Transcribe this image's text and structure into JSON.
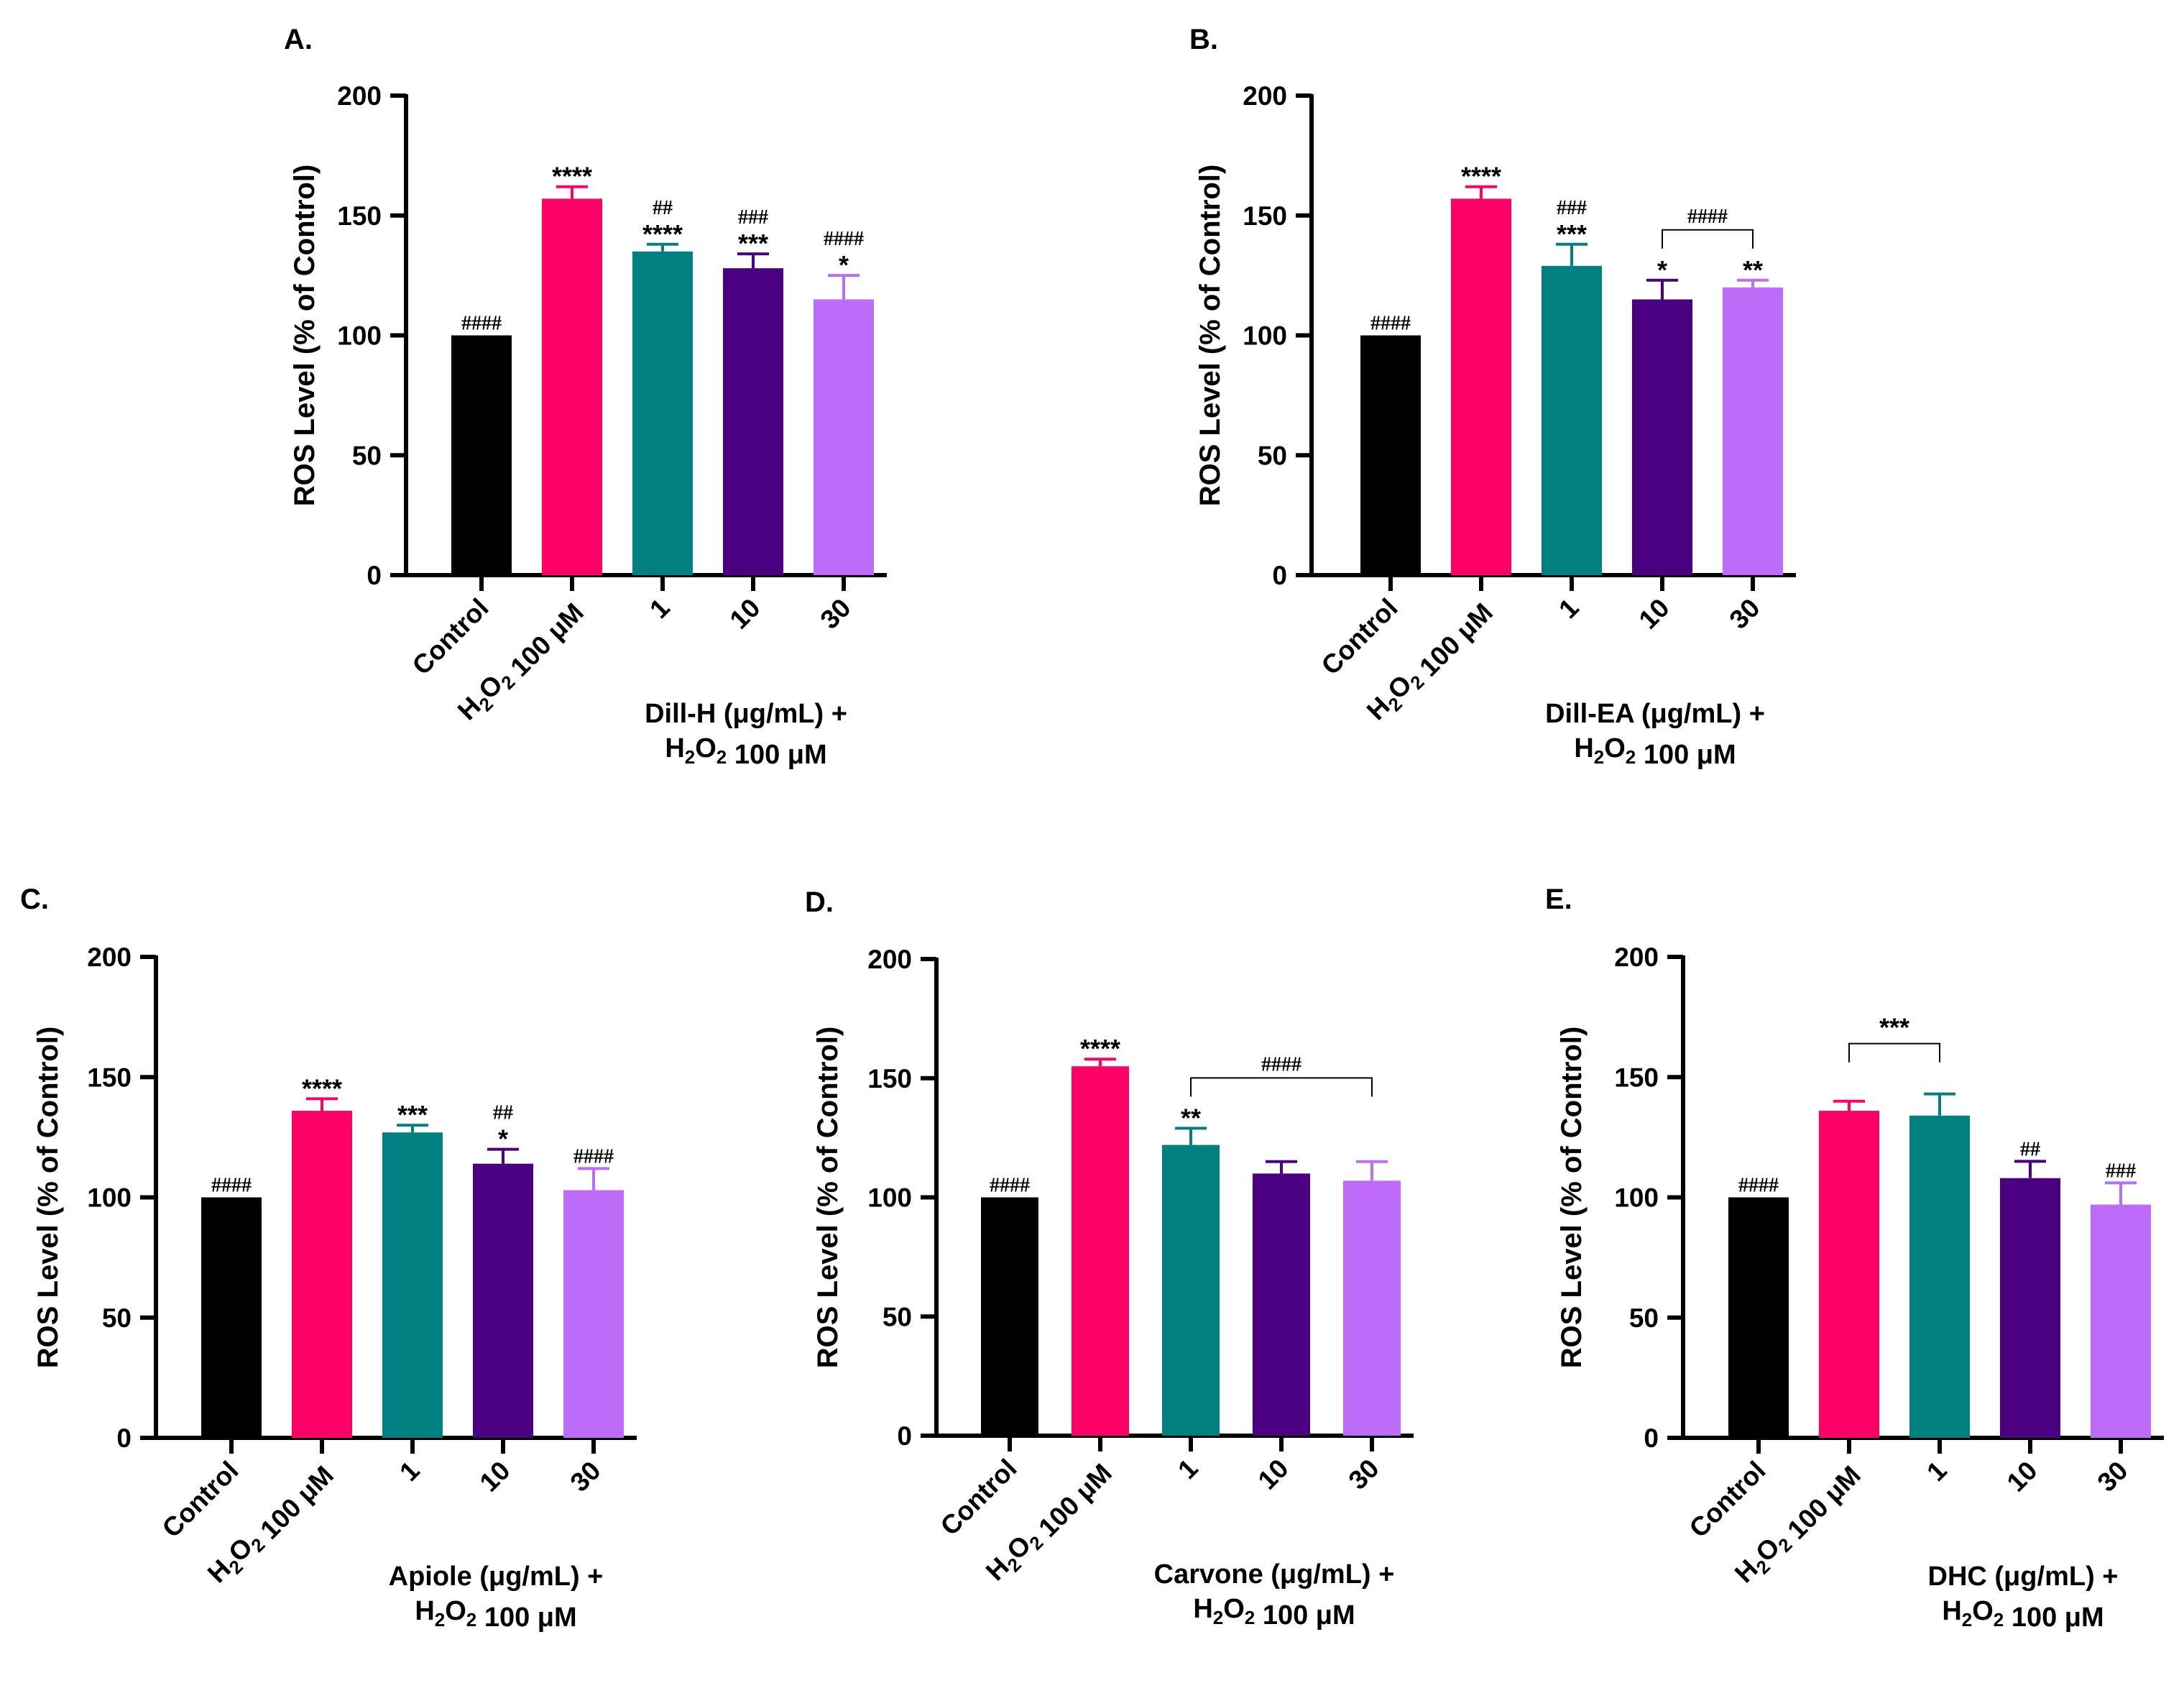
{
  "colors": {
    "control": "#000000",
    "h2o2": "#ff0066",
    "c1": "#008080",
    "c10": "#4b0082",
    "c30": "#bf6bfa",
    "axis": "#000000"
  },
  "chart_data": [
    {
      "panel": "A.",
      "type": "bar",
      "ylabel": "ROS Level (% of Control)",
      "ylim": [
        0,
        200
      ],
      "yticks": [
        0,
        50,
        100,
        150,
        200
      ],
      "categories": [
        "Control",
        "H2O2 100 μM",
        "1",
        "10",
        "30"
      ],
      "group_label": [
        "Dill-H (μg/mL) +",
        "H2O2 100 μM"
      ],
      "values": [
        100,
        157,
        135,
        128,
        115
      ],
      "errors": [
        0,
        5,
        3,
        6,
        10
      ],
      "stars": [
        "",
        "****",
        "****",
        "***",
        "*"
      ],
      "hashes": [
        "####",
        "",
        "##",
        "###",
        "####"
      ],
      "brackets": []
    },
    {
      "panel": "B.",
      "type": "bar",
      "ylabel": "ROS Level (% of Control)",
      "ylim": [
        0,
        200
      ],
      "yticks": [
        0,
        50,
        100,
        150,
        200
      ],
      "categories": [
        "Control",
        "H2O2 100 μM",
        "1",
        "10",
        "30"
      ],
      "group_label": [
        "Dill-EA (μg/mL) +",
        "H2O2 100 μM"
      ],
      "values": [
        100,
        157,
        129,
        115,
        120
      ],
      "errors": [
        0,
        5,
        9,
        8,
        3
      ],
      "stars": [
        "",
        "****",
        "***",
        "*",
        "**"
      ],
      "hashes": [
        "####",
        "",
        "###",
        "",
        ""
      ],
      "brackets": [
        {
          "from": 3,
          "to": 4,
          "label": "####"
        }
      ]
    },
    {
      "panel": "C.",
      "type": "bar",
      "ylabel": "ROS Level (% of Control)",
      "ylim": [
        0,
        200
      ],
      "yticks": [
        0,
        50,
        100,
        150,
        200
      ],
      "categories": [
        "Control",
        "H2O2 100 μM",
        "1",
        "10",
        "30"
      ],
      "group_label": [
        "Apiole (μg/mL) +",
        "H2O2 100 μM"
      ],
      "values": [
        100,
        136,
        127,
        114,
        103
      ],
      "errors": [
        0,
        5,
        3,
        6,
        9
      ],
      "stars": [
        "",
        "****",
        "***",
        "*",
        ""
      ],
      "hashes": [
        "####",
        "",
        "",
        "##",
        "####"
      ],
      "brackets": []
    },
    {
      "panel": "D.",
      "type": "bar",
      "ylabel": "ROS Level (% of Control)",
      "ylim": [
        0,
        200
      ],
      "yticks": [
        0,
        50,
        100,
        150,
        200
      ],
      "categories": [
        "Control",
        "H2O2 100 μM",
        "1",
        "10",
        "30"
      ],
      "group_label": [
        "Carvone (μg/mL) +",
        "H2O2 100 μM"
      ],
      "values": [
        100,
        155,
        122,
        110,
        107
      ],
      "errors": [
        0,
        3,
        7,
        5,
        8
      ],
      "stars": [
        "",
        "****",
        "**",
        "",
        ""
      ],
      "hashes": [
        "####",
        "",
        "",
        "",
        ""
      ],
      "brackets": [
        {
          "from": 2,
          "to": 4,
          "label": "####"
        }
      ]
    },
    {
      "panel": "E.",
      "type": "bar",
      "ylabel": "ROS Level (% of Control)",
      "ylim": [
        0,
        200
      ],
      "yticks": [
        0,
        50,
        100,
        150,
        200
      ],
      "categories": [
        "Control",
        "H2O2 100 μM",
        "1",
        "10",
        "30"
      ],
      "group_label": [
        "DHC (μg/mL) +",
        "H2O2 100 μM"
      ],
      "values": [
        100,
        136,
        134,
        108,
        97
      ],
      "errors": [
        0,
        4,
        9,
        7,
        9
      ],
      "stars": [
        "",
        "",
        "",
        "",
        ""
      ],
      "hashes": [
        "####",
        "",
        "",
        "##",
        "###"
      ],
      "brackets": [
        {
          "from": 1,
          "to": 2,
          "label": "***"
        }
      ]
    }
  ]
}
